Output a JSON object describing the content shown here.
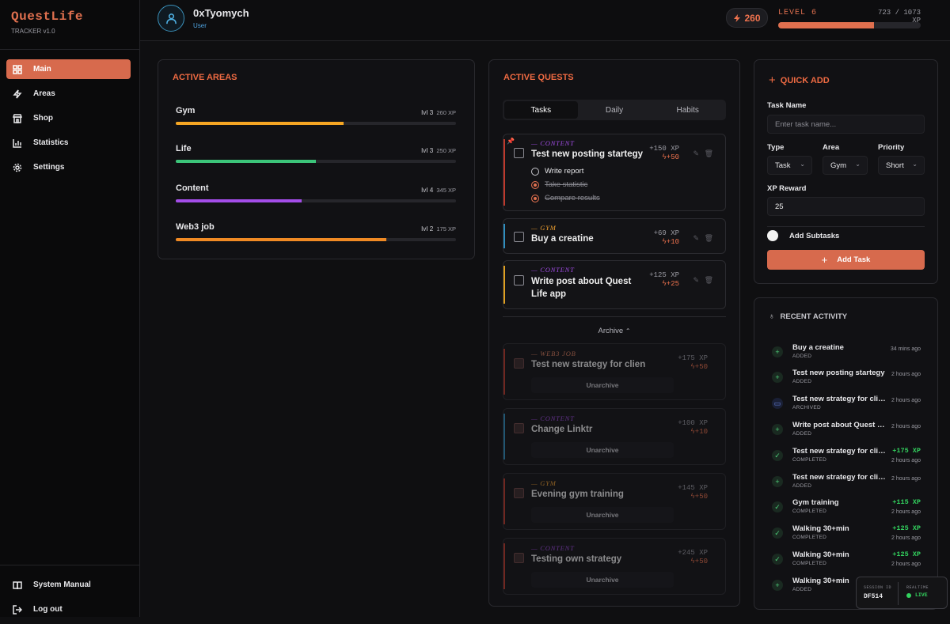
{
  "app": {
    "name": "QuestLife",
    "version": "TRACKER v1.0"
  },
  "sidebar": {
    "items": [
      {
        "label": "Main",
        "icon": "grid-icon",
        "active": true
      },
      {
        "label": "Areas",
        "icon": "bolt-icon"
      },
      {
        "label": "Shop",
        "icon": "store-icon"
      },
      {
        "label": "Statistics",
        "icon": "bar-chart-icon"
      },
      {
        "label": "Settings",
        "icon": "gear-icon"
      }
    ],
    "bottom": [
      {
        "label": "System Manual",
        "icon": "book-icon"
      },
      {
        "label": "Log out",
        "icon": "logout-icon"
      }
    ]
  },
  "user": {
    "name": "0xTyomych",
    "role": "User",
    "coins": "260"
  },
  "level": {
    "label": "LEVEL 6",
    "xp": "723 / 1073 XP",
    "progress": 0.674
  },
  "areas": {
    "title": "ACTIVE AREAS",
    "items": [
      {
        "name": "Gym",
        "level": "lvl 3",
        "xp": "260 XP",
        "progress": 0.6,
        "color": "#f5a623"
      },
      {
        "name": "Life",
        "level": "lvl 3",
        "xp": "250 XP",
        "progress": 0.5,
        "color": "#3cc57a"
      },
      {
        "name": "Content",
        "level": "lvl 4",
        "xp": "345 XP",
        "progress": 0.45,
        "color": "#a34de8"
      },
      {
        "name": "Web3 job",
        "level": "lvl 2",
        "xp": "175 XP",
        "progress": 0.75,
        "color": "#f08a24"
      }
    ]
  },
  "quests": {
    "title": "ACTIVE QUESTS",
    "tabs": [
      "Tasks",
      "Daily",
      "Habits"
    ],
    "active": [
      {
        "category": "— CONTENT",
        "title": "Test new posting startegy",
        "xp": "+150 XP",
        "coins": "+50",
        "color": "#c0392b",
        "subtasks": [
          {
            "label": "Write report",
            "done": false
          },
          {
            "label": "Take statistic",
            "done": true
          },
          {
            "label": "Compare results",
            "done": true
          }
        ]
      },
      {
        "category": "— GYM",
        "title": "Buy a creatine",
        "xp": "+69 XP",
        "coins": "+10",
        "color": "#2f8fbf"
      },
      {
        "category": "— CONTENT",
        "title": "Write post about Quest Life app",
        "title_line1": "Write post about Quest",
        "title_line2": "Life app",
        "xp": "+125 XP",
        "coins": "+25",
        "color": "#e0a020"
      }
    ],
    "archive_label": "Archive",
    "unarchive_label": "Unarchive",
    "archived": [
      {
        "category": "— WEB3 JOB",
        "title": "Test new strategy for clien",
        "xp": "+175 XP",
        "coins": "+50",
        "color": "#c0392b"
      },
      {
        "category": "— CONTENT",
        "title": "Change Linktr",
        "xp": "+100 XP",
        "coins": "+10",
        "color": "#2f8fbf"
      },
      {
        "category": "— GYM",
        "title": "Evening gym training",
        "xp": "+145 XP",
        "coins": "+50",
        "color": "#c0392b"
      },
      {
        "category": "— CONTENT",
        "title": "Testing own strategy",
        "xp": "+245 XP",
        "coins": "+50",
        "color": "#c0392b"
      }
    ]
  },
  "quick_add": {
    "title": "QUICK ADD",
    "task_name_label": "Task Name",
    "task_name_placeholder": "Enter task name...",
    "type_label": "Type",
    "type_value": "Task",
    "area_label": "Area",
    "area_value": "Gym",
    "priority_label": "Priority",
    "priority_value": "Short",
    "xp_label": "XP Reward",
    "xp_value": "25",
    "subtasks_label": "Add Subtasks",
    "button": "Add Task"
  },
  "activity": {
    "title": "RECENT ACTIVITY",
    "items": [
      {
        "title": "Buy a creatine",
        "status": "ADDED",
        "time": "34 mins ago",
        "kind": "added"
      },
      {
        "title": "Test new posting startegy",
        "status": "ADDED",
        "time": "2 hours ago",
        "kind": "added"
      },
      {
        "title": "Test new strategy for clien",
        "status": "ARCHIVED",
        "time": "2 hours ago",
        "kind": "archived"
      },
      {
        "title": "Write post about Quest Life app",
        "status": "ADDED",
        "time": "2 hours ago",
        "kind": "added"
      },
      {
        "title": "Test new strategy for clien",
        "status": "COMPLETED",
        "time": "2 hours ago",
        "xp": "+175 XP",
        "kind": "completed"
      },
      {
        "title": "Test new strategy for clien",
        "status": "ADDED",
        "time": "2 hours ago",
        "kind": "added"
      },
      {
        "title": "Gym training",
        "status": "COMPLETED",
        "time": "2 hours ago",
        "xp": "+115 XP",
        "kind": "completed"
      },
      {
        "title": "Walking 30+min",
        "status": "COMPLETED",
        "time": "2 hours ago",
        "xp": "+125 XP",
        "kind": "completed"
      },
      {
        "title": "Walking 30+min",
        "status": "COMPLETED",
        "time": "2 hours ago",
        "xp": "+125 XP",
        "kind": "completed"
      },
      {
        "title": "Walking 30+min",
        "status": "ADDED",
        "kind": "added"
      }
    ]
  },
  "session": {
    "id_label": "SESSION ID",
    "id": "DF514",
    "rt_label": "REALTIME",
    "rt_value": "LIVE"
  }
}
